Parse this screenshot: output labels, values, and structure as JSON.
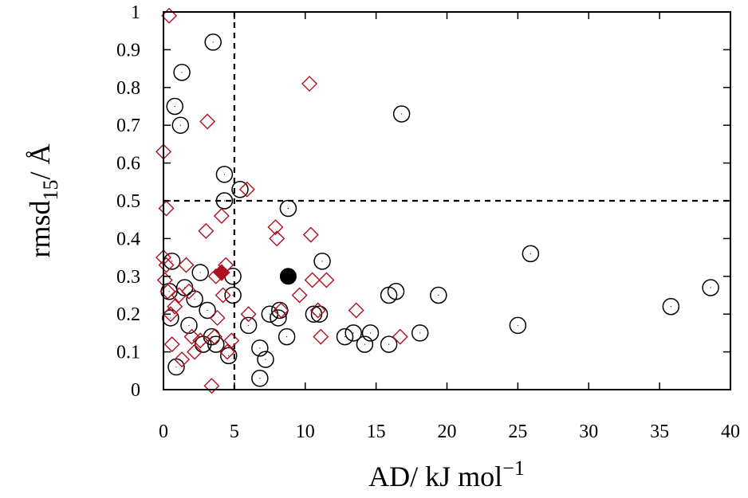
{
  "chart_data": {
    "type": "scatter",
    "xlabel": {
      "main": "AD/ kJ mol",
      "sup": "−1"
    },
    "ylabel": {
      "main": "rmsd",
      "sub": "15",
      "tail": "/ Å"
    },
    "xlim": [
      0,
      40
    ],
    "ylim": [
      0,
      1
    ],
    "xticks": [
      0,
      5,
      10,
      15,
      20,
      25,
      30,
      35,
      40
    ],
    "yticks": [
      0,
      0.1,
      0.2,
      0.3,
      0.4,
      0.5,
      0.6,
      0.7,
      0.8,
      0.9,
      1
    ],
    "xtick_labels": [
      "0",
      "5",
      "10",
      "15",
      "20",
      "25",
      "30",
      "35",
      "40"
    ],
    "ytick_labels": [
      "0",
      "0.1",
      "0.2",
      "0.3",
      "0.4",
      "0.5",
      "0.6",
      "0.7",
      "0.8",
      "0.9",
      "1"
    ],
    "grid": false,
    "threshold_lines": {
      "x": 5,
      "y": 0.5
    },
    "colors": {
      "circle": "#000000",
      "diamond": "#b01020",
      "highlight_diamond": "#b01020",
      "axis": "#000000"
    },
    "series": [
      {
        "name": "circles",
        "marker": "open-circle",
        "points": [
          [
            0.4,
            0.26
          ],
          [
            0.6,
            0.34
          ],
          [
            0.5,
            0.19
          ],
          [
            0.8,
            0.75
          ],
          [
            1.2,
            0.7
          ],
          [
            1.3,
            0.84
          ],
          [
            0.9,
            0.06
          ],
          [
            1.5,
            0.27
          ],
          [
            1.8,
            0.17
          ],
          [
            2.2,
            0.24
          ],
          [
            2.6,
            0.31
          ],
          [
            2.8,
            0.12
          ],
          [
            3.1,
            0.21
          ],
          [
            3.4,
            0.14
          ],
          [
            3.7,
            0.12
          ],
          [
            3.5,
            0.92
          ],
          [
            4.3,
            0.57
          ],
          [
            4.3,
            0.5
          ],
          [
            4.6,
            0.09
          ],
          [
            4.9,
            0.3
          ],
          [
            4.9,
            0.25
          ],
          [
            5.4,
            0.53
          ],
          [
            6.0,
            0.17
          ],
          [
            6.8,
            0.11
          ],
          [
            6.8,
            0.03
          ],
          [
            7.2,
            0.08
          ],
          [
            7.5,
            0.2
          ],
          [
            8.1,
            0.19
          ],
          [
            8.2,
            0.21
          ],
          [
            8.7,
            0.14
          ],
          [
            8.8,
            0.48
          ],
          [
            10.6,
            0.2
          ],
          [
            11.0,
            0.2
          ],
          [
            11.2,
            0.34
          ],
          [
            12.8,
            0.14
          ],
          [
            13.4,
            0.15
          ],
          [
            14.2,
            0.12
          ],
          [
            14.6,
            0.15
          ],
          [
            15.9,
            0.25
          ],
          [
            16.4,
            0.26
          ],
          [
            15.9,
            0.12
          ],
          [
            16.8,
            0.73
          ],
          [
            18.1,
            0.15
          ],
          [
            19.4,
            0.25
          ],
          [
            25.0,
            0.17
          ],
          [
            25.9,
            0.36
          ],
          [
            35.8,
            0.22
          ],
          [
            38.6,
            0.27
          ]
        ]
      },
      {
        "name": "diamonds",
        "marker": "open-diamond",
        "points": [
          [
            0.4,
            0.99
          ],
          [
            0.0,
            0.63
          ],
          [
            0.2,
            0.48
          ],
          [
            0.0,
            0.35
          ],
          [
            0.2,
            0.33
          ],
          [
            0.1,
            0.29
          ],
          [
            0.3,
            0.26
          ],
          [
            0.5,
            0.2
          ],
          [
            0.6,
            0.12
          ],
          [
            0.8,
            0.22
          ],
          [
            1.1,
            0.25
          ],
          [
            1.3,
            0.08
          ],
          [
            1.6,
            0.33
          ],
          [
            1.8,
            0.26
          ],
          [
            2.0,
            0.14
          ],
          [
            2.2,
            0.1
          ],
          [
            2.6,
            0.13
          ],
          [
            3.0,
            0.42
          ],
          [
            3.1,
            0.71
          ],
          [
            3.4,
            0.01
          ],
          [
            3.6,
            0.14
          ],
          [
            3.7,
            0.3
          ],
          [
            3.8,
            0.19
          ],
          [
            4.1,
            0.46
          ],
          [
            4.2,
            0.25
          ],
          [
            4.4,
            0.33
          ],
          [
            4.5,
            0.1
          ],
          [
            4.8,
            0.13
          ],
          [
            5.9,
            0.53
          ],
          [
            6.0,
            0.2
          ],
          [
            7.9,
            0.43
          ],
          [
            8.0,
            0.4
          ],
          [
            8.3,
            0.21
          ],
          [
            9.6,
            0.25
          ],
          [
            10.3,
            0.81
          ],
          [
            10.4,
            0.41
          ],
          [
            10.5,
            0.29
          ],
          [
            10.9,
            0.21
          ],
          [
            11.1,
            0.14
          ],
          [
            11.5,
            0.29
          ],
          [
            13.6,
            0.21
          ],
          [
            16.7,
            0.14
          ]
        ]
      },
      {
        "name": "highlight-circle",
        "marker": "filled-circle",
        "points": [
          [
            8.8,
            0.3
          ]
        ]
      },
      {
        "name": "highlight-diamond",
        "marker": "filled-diamond",
        "points": [
          [
            4.1,
            0.31
          ]
        ]
      }
    ]
  }
}
